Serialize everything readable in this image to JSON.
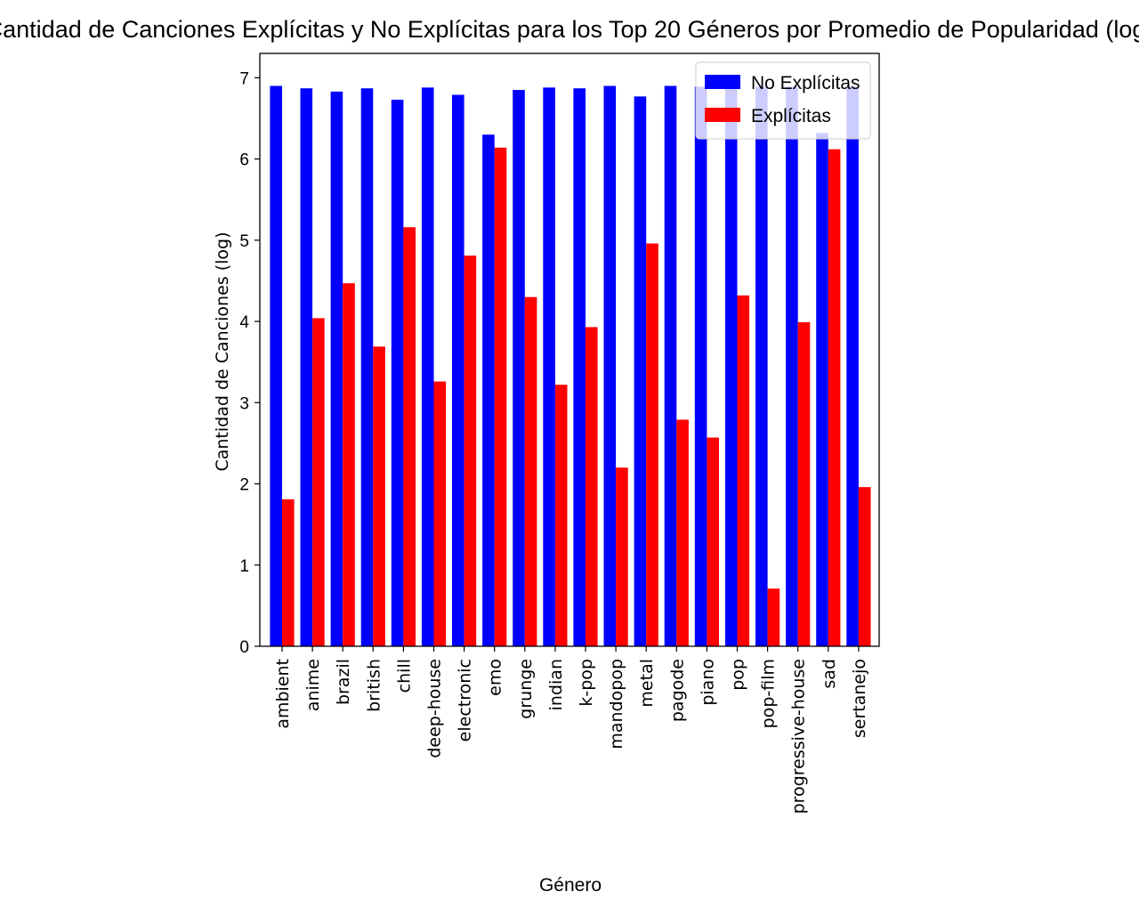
{
  "chart_data": {
    "type": "bar",
    "title": "Cantidad de Canciones Explícitas y No Explícitas para los Top 20 Géneros por Promedio de Popularidad (log)",
    "xlabel": "Género",
    "ylabel": "Cantidad de Canciones (log)",
    "ylim": [
      0,
      7.3
    ],
    "yticks": [
      0,
      1,
      2,
      3,
      4,
      5,
      6,
      7
    ],
    "grid": false,
    "legend_position": "top-right",
    "categories": [
      "ambient",
      "anime",
      "brazil",
      "british",
      "chill",
      "deep-house",
      "electronic",
      "emo",
      "grunge",
      "indian",
      "k-pop",
      "mandopop",
      "metal",
      "pagode",
      "piano",
      "pop",
      "pop-film",
      "progressive-house",
      "sad",
      "sertanejo"
    ],
    "series": [
      {
        "name": "No Explícitas",
        "color": "#0000ff",
        "values": [
          6.9,
          6.87,
          6.83,
          6.87,
          6.73,
          6.88,
          6.79,
          6.3,
          6.85,
          6.88,
          6.87,
          6.9,
          6.77,
          6.9,
          6.89,
          6.89,
          6.89,
          6.89,
          6.32,
          6.89
        ]
      },
      {
        "name": "Explícitas",
        "color": "#ff0000",
        "values": [
          1.81,
          4.04,
          4.47,
          3.69,
          5.16,
          3.26,
          4.81,
          6.14,
          4.3,
          3.22,
          3.93,
          2.2,
          4.96,
          2.79,
          2.57,
          4.32,
          0.71,
          3.99,
          6.12,
          1.96
        ]
      }
    ]
  }
}
